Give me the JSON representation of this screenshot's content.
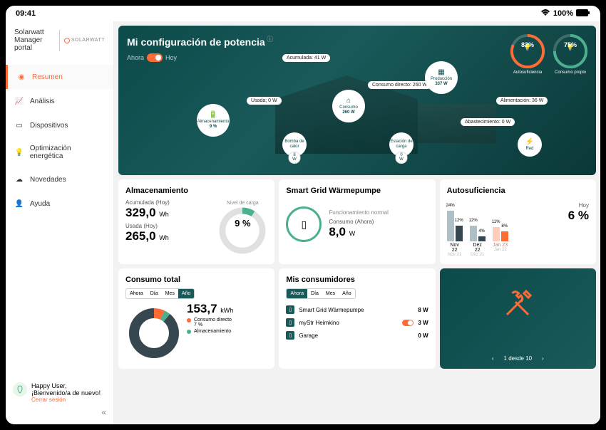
{
  "status": {
    "time": "09:41",
    "battery": "100%"
  },
  "brand": {
    "title": "Solarwatt Manager portal",
    "logo": "SOLARWATT"
  },
  "nav": {
    "items": [
      {
        "label": "Resumen",
        "name": "resumen",
        "active": true
      },
      {
        "label": "Análisis",
        "name": "analisis"
      },
      {
        "label": "Dispositivos",
        "name": "dispositivos"
      },
      {
        "label": "Optimización energética",
        "name": "optimizacion"
      },
      {
        "label": "Novedades",
        "name": "novedades"
      },
      {
        "label": "Ayuda",
        "name": "ayuda"
      }
    ]
  },
  "user": {
    "name": "Happy User,",
    "welcome": "¡Bienvenido/a de nuevo!",
    "logout": "Cerrar sesión"
  },
  "hero": {
    "title": "Mi configuración de potencia",
    "toggle": {
      "left": "Ahora",
      "right": "Hoy"
    },
    "gauges": {
      "auto": {
        "pct": 82,
        "label": "Autosuficiencia",
        "color": "#ff6b35"
      },
      "cons": {
        "pct": 75,
        "label": "Consumo propio",
        "color": "#4caf8f"
      }
    },
    "pills": {
      "acumulada": "Acumulada:  41 W",
      "usada": "Usada;   0 W",
      "directo": "Consumo directo:  260 W",
      "alimentacion": "Alimentación:  36 W",
      "abastecimiento": "Abastecimiento:  0 W"
    },
    "nodes": {
      "produccion": {
        "label": "Producción",
        "value": "337 W"
      },
      "consumo": {
        "label": "Consumo",
        "value": "260 W"
      },
      "almacen": {
        "label": "Almacenamiento",
        "value": "9 %"
      },
      "bomba": {
        "label": "Bomba de calor",
        "badge": "8 W"
      },
      "estacion": {
        "label": "Estación de carga",
        "badge": "0 W"
      },
      "red": {
        "label": "Red"
      }
    }
  },
  "cards": {
    "almacen": {
      "title": "Almacenamiento",
      "l1": "Acumulada (Hoy)",
      "v1": "329,0",
      "u1": "Wh",
      "l2": "Usada (Hoy)",
      "v2": "265,0",
      "u2": "Wh",
      "donut_label": "Nivel de carga",
      "donut_val": "9 %",
      "donut_pct": 9
    },
    "smart": {
      "title": "Smart Grid Wärmepumpe",
      "status": "Funcionamiento normal",
      "sub": "Consumo (Ahora)",
      "val": "8,0",
      "unit": "W"
    },
    "auto": {
      "title": "Autosuficiencia",
      "today_lbl": "Hoy",
      "today_val": "6 %",
      "bars": [
        {
          "x": "Nov 22",
          "sub": "Nov 21",
          "a": 24,
          "b": 12,
          "colA": "#b0bec5",
          "colB": "#37474f"
        },
        {
          "x": "Dez 22",
          "sub": "Dez 21",
          "a": 12,
          "b": 4,
          "colA": "#b0bec5",
          "colB": "#37474f"
        },
        {
          "x": "Jan 23",
          "sub": "Jan 22",
          "a": 11,
          "b": 8,
          "colA": "#ffccbc",
          "colB": "#ff6b35",
          "active": true
        }
      ]
    },
    "consumo": {
      "title": "Consumo total",
      "tabs": [
        "Ahora",
        "Día",
        "Mes",
        "Año"
      ],
      "active": 3,
      "val": "153,7",
      "unit": "kWh",
      "legend": [
        {
          "color": "#ff6b35",
          "label": "Consumo directo",
          "pct": "7 %"
        },
        {
          "color": "#4caf8f",
          "label": "Almacenamiento",
          "pct": ""
        }
      ],
      "slices": [
        {
          "color": "#ff6b35",
          "pct": 7
        },
        {
          "color": "#4caf8f",
          "pct": 4
        },
        {
          "color": "#37474f",
          "pct": 89
        }
      ]
    },
    "mis": {
      "title": "Mis consumidores",
      "tabs": [
        "Ahora",
        "Día",
        "Mes",
        "Año"
      ],
      "active": 0,
      "rows": [
        {
          "name": "Smart Grid Wärmepumpe",
          "val": "8 W",
          "toggle": false
        },
        {
          "name": "myStr Heimkino",
          "val": "3 W",
          "toggle": true
        },
        {
          "name": "Garage",
          "val": "0 W",
          "toggle": false
        }
      ]
    },
    "tools": {
      "pager": "1 desde 10"
    }
  },
  "colors": {
    "accent": "#ff6b35",
    "green": "#4caf8f",
    "teal": "#0d4a4a"
  }
}
